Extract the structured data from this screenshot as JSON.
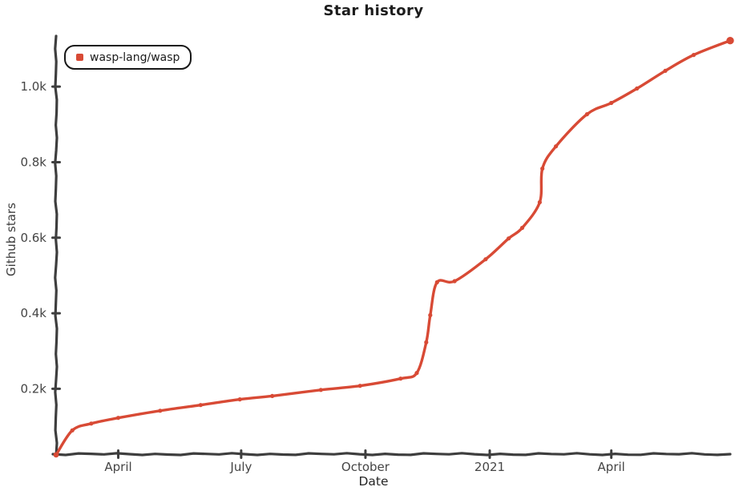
{
  "chart_data": {
    "type": "line",
    "title": "Star history",
    "xlabel": "Date",
    "ylabel": "Github stars",
    "style": "hand-drawn-xkcd",
    "grid": false,
    "background": "#ffffff",
    "axis_color": "#3e3e3e",
    "tick_text_color": "#454545",
    "legend": {
      "position": "top-left",
      "entries": [
        {
          "label": "wasp-lang/wasp",
          "color": "#d84a35",
          "marker": "square"
        }
      ]
    },
    "x_domain": [
      "2020-02-15",
      "2021-06-28"
    ],
    "y_domain": [
      27,
      1134
    ],
    "x_ticks": [
      {
        "label": "April",
        "date": "2020-04-01"
      },
      {
        "label": "July",
        "date": "2020-07-01"
      },
      {
        "label": "October",
        "date": "2020-10-01"
      },
      {
        "label": "2021",
        "date": "2021-01-01"
      },
      {
        "label": "April",
        "date": "2021-04-01"
      }
    ],
    "y_ticks": [
      {
        "label": "0.2k",
        "value": 200
      },
      {
        "label": "0.4k",
        "value": 400
      },
      {
        "label": "0.6k",
        "value": 600
      },
      {
        "label": "0.8k",
        "value": 800
      },
      {
        "label": "1.0k",
        "value": 1000
      }
    ],
    "series": [
      {
        "name": "wasp-lang/wasp",
        "color": "#d84a35",
        "marker": "dot",
        "points": [
          [
            "2020-02-15",
            25
          ],
          [
            "2020-02-27",
            90
          ],
          [
            "2020-03-12",
            108
          ],
          [
            "2020-04-01",
            123
          ],
          [
            "2020-05-02",
            142
          ],
          [
            "2020-06-01",
            157
          ],
          [
            "2020-06-30",
            172
          ],
          [
            "2020-07-24",
            181
          ],
          [
            "2020-08-29",
            197
          ],
          [
            "2020-09-27",
            208
          ],
          [
            "2020-10-27",
            227
          ],
          [
            "2020-11-08",
            242
          ],
          [
            "2020-11-15",
            323
          ],
          [
            "2020-11-18",
            395
          ],
          [
            "2020-11-23",
            482
          ],
          [
            "2020-12-06",
            485
          ],
          [
            "2020-12-29",
            543
          ],
          [
            "2021-01-15",
            598
          ],
          [
            "2021-01-25",
            626
          ],
          [
            "2021-02-07",
            694
          ],
          [
            "2021-02-09",
            783
          ],
          [
            "2021-02-19",
            842
          ],
          [
            "2021-03-14",
            927
          ],
          [
            "2021-04-01",
            957
          ],
          [
            "2021-04-20",
            995
          ],
          [
            "2021-05-11",
            1042
          ],
          [
            "2021-06-01",
            1084
          ],
          [
            "2021-06-28",
            1122
          ]
        ]
      }
    ]
  }
}
